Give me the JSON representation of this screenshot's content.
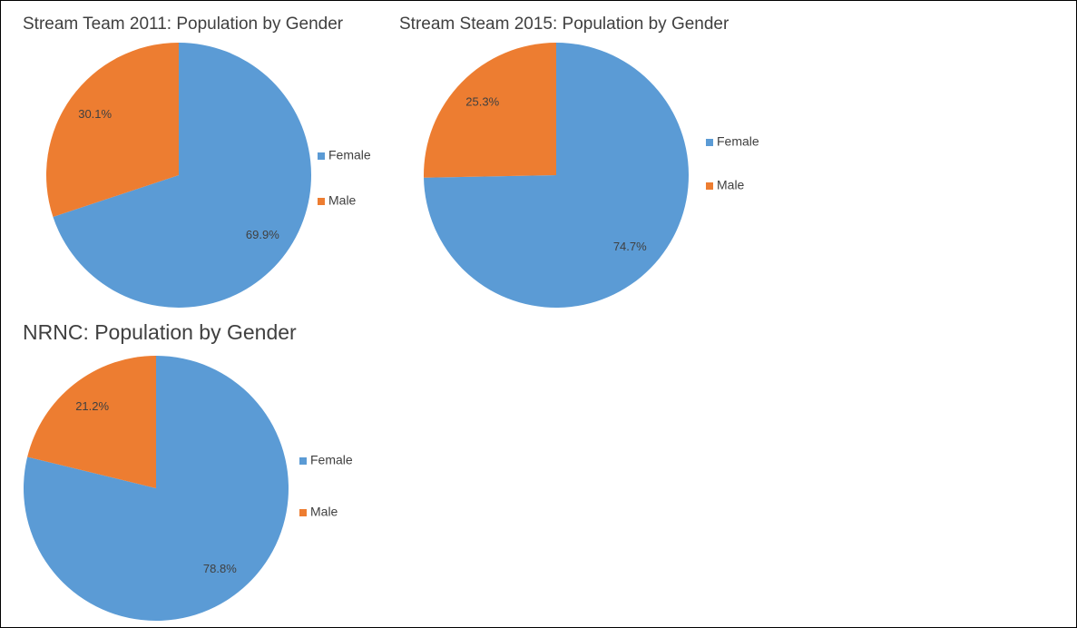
{
  "chart_data": [
    {
      "type": "pie",
      "title": "Stream Team 2011: Population by Gender",
      "categories": [
        "Female",
        "Male"
      ],
      "values": [
        69.9,
        30.1
      ],
      "value_labels": [
        "69.9%",
        "30.1%"
      ],
      "colors": [
        "#5b9bd5",
        "#ed7d31"
      ]
    },
    {
      "type": "pie",
      "title": "Stream Steam 2015: Population by Gender",
      "categories": [
        "Female",
        "Male"
      ],
      "values": [
        74.7,
        25.3
      ],
      "value_labels": [
        "74.7%",
        "25.3%"
      ],
      "colors": [
        "#5b9bd5",
        "#ed7d31"
      ]
    },
    {
      "type": "pie",
      "title": "NRNC: Population by Gender",
      "categories": [
        "Female",
        "Male"
      ],
      "values": [
        78.8,
        21.2
      ],
      "value_labels": [
        "78.8%",
        "21.2%"
      ],
      "colors": [
        "#5b9bd5",
        "#ed7d31"
      ]
    }
  ]
}
